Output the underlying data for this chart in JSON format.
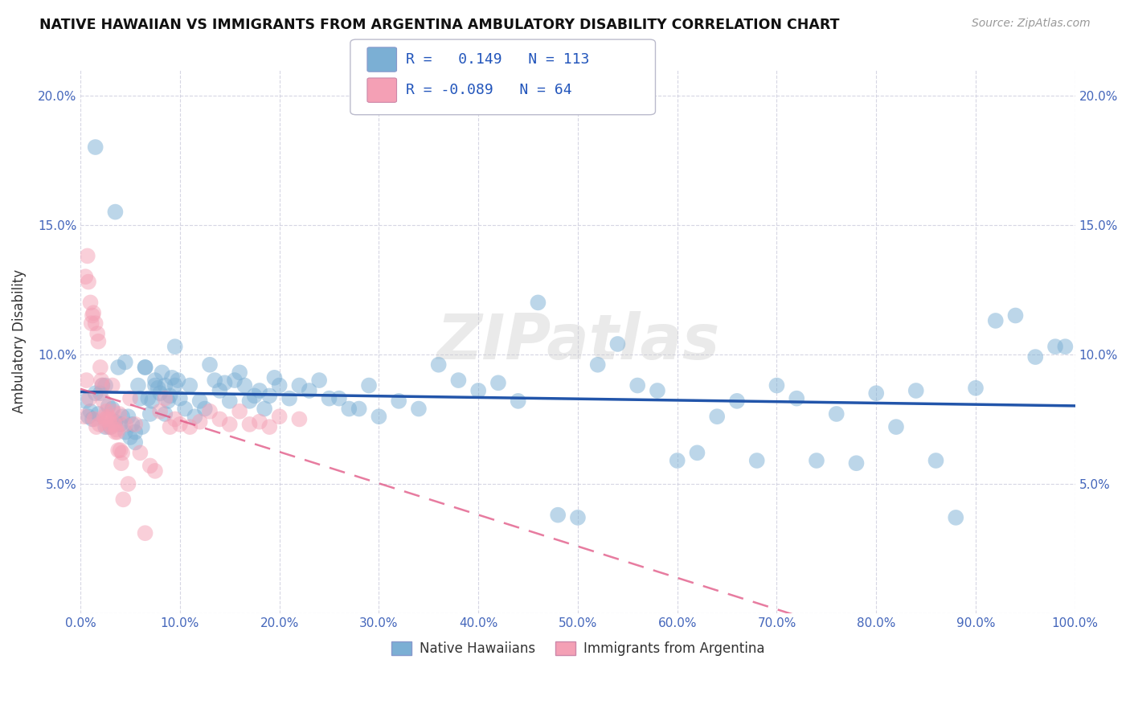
{
  "title": "NATIVE HAWAIIAN VS IMMIGRANTS FROM ARGENTINA AMBULATORY DISABILITY CORRELATION CHART",
  "source": "Source: ZipAtlas.com",
  "ylabel": "Ambulatory Disability",
  "xlim": [
    0.0,
    1.0
  ],
  "ylim": [
    0.0,
    0.21
  ],
  "xticks": [
    0.0,
    0.1,
    0.2,
    0.3,
    0.4,
    0.5,
    0.6,
    0.7,
    0.8,
    0.9,
    1.0
  ],
  "xticklabels": [
    "0.0%",
    "10.0%",
    "20.0%",
    "30.0%",
    "40.0%",
    "50.0%",
    "60.0%",
    "70.0%",
    "80.0%",
    "90.0%",
    "100.0%"
  ],
  "yticks": [
    0.0,
    0.05,
    0.1,
    0.15,
    0.2
  ],
  "yticklabels": [
    "",
    "5.0%",
    "10.0%",
    "15.0%",
    "20.0%"
  ],
  "blue_R": 0.149,
  "blue_N": 113,
  "pink_R": -0.089,
  "pink_N": 64,
  "blue_color": "#7BAFD4",
  "pink_color": "#F4A0B5",
  "blue_line_color": "#2255AA",
  "pink_line_color": "#E05080",
  "watermark": "ZIPatlas",
  "legend_label_blue": "Native Hawaiians",
  "legend_label_pink": "Immigrants from Argentina",
  "blue_scatter_x": [
    0.005,
    0.008,
    0.01,
    0.012,
    0.015,
    0.018,
    0.02,
    0.022,
    0.025,
    0.028,
    0.03,
    0.032,
    0.035,
    0.038,
    0.04,
    0.042,
    0.045,
    0.048,
    0.05,
    0.052,
    0.055,
    0.058,
    0.06,
    0.062,
    0.065,
    0.068,
    0.07,
    0.072,
    0.075,
    0.078,
    0.08,
    0.082,
    0.085,
    0.088,
    0.09,
    0.092,
    0.095,
    0.098,
    0.1,
    0.105,
    0.11,
    0.115,
    0.12,
    0.125,
    0.13,
    0.135,
    0.14,
    0.145,
    0.15,
    0.155,
    0.16,
    0.165,
    0.17,
    0.175,
    0.18,
    0.185,
    0.19,
    0.195,
    0.2,
    0.21,
    0.22,
    0.23,
    0.24,
    0.25,
    0.26,
    0.27,
    0.28,
    0.29,
    0.3,
    0.32,
    0.34,
    0.36,
    0.38,
    0.4,
    0.42,
    0.44,
    0.46,
    0.48,
    0.5,
    0.52,
    0.54,
    0.56,
    0.58,
    0.6,
    0.62,
    0.64,
    0.66,
    0.68,
    0.7,
    0.72,
    0.74,
    0.76,
    0.78,
    0.8,
    0.82,
    0.84,
    0.86,
    0.88,
    0.9,
    0.92,
    0.94,
    0.96,
    0.98,
    0.99,
    0.015,
    0.025,
    0.035,
    0.045,
    0.055,
    0.065,
    0.075,
    0.085,
    0.095
  ],
  "blue_scatter_y": [
    0.082,
    0.076,
    0.078,
    0.075,
    0.085,
    0.077,
    0.085,
    0.088,
    0.088,
    0.08,
    0.072,
    0.079,
    0.074,
    0.095,
    0.073,
    0.076,
    0.07,
    0.076,
    0.068,
    0.073,
    0.07,
    0.088,
    0.083,
    0.072,
    0.095,
    0.083,
    0.077,
    0.082,
    0.09,
    0.087,
    0.085,
    0.093,
    0.088,
    0.082,
    0.084,
    0.091,
    0.088,
    0.09,
    0.083,
    0.079,
    0.088,
    0.076,
    0.082,
    0.079,
    0.096,
    0.09,
    0.086,
    0.089,
    0.082,
    0.09,
    0.093,
    0.088,
    0.082,
    0.084,
    0.086,
    0.079,
    0.084,
    0.091,
    0.088,
    0.083,
    0.088,
    0.086,
    0.09,
    0.083,
    0.083,
    0.079,
    0.079,
    0.088,
    0.076,
    0.082,
    0.079,
    0.096,
    0.09,
    0.086,
    0.089,
    0.082,
    0.12,
    0.038,
    0.037,
    0.096,
    0.104,
    0.088,
    0.086,
    0.059,
    0.062,
    0.076,
    0.082,
    0.059,
    0.088,
    0.083,
    0.059,
    0.077,
    0.058,
    0.085,
    0.072,
    0.086,
    0.059,
    0.037,
    0.087,
    0.113,
    0.115,
    0.099,
    0.103,
    0.103,
    0.18,
    0.072,
    0.155,
    0.097,
    0.066,
    0.095,
    0.088,
    0.077,
    0.103
  ],
  "pink_scatter_x": [
    0.004,
    0.005,
    0.006,
    0.007,
    0.008,
    0.009,
    0.01,
    0.011,
    0.012,
    0.013,
    0.014,
    0.015,
    0.016,
    0.017,
    0.018,
    0.019,
    0.02,
    0.021,
    0.022,
    0.023,
    0.024,
    0.025,
    0.026,
    0.027,
    0.028,
    0.029,
    0.03,
    0.031,
    0.032,
    0.033,
    0.034,
    0.035,
    0.036,
    0.037,
    0.038,
    0.039,
    0.04,
    0.041,
    0.042,
    0.043,
    0.045,
    0.048,
    0.05,
    0.055,
    0.06,
    0.065,
    0.07,
    0.075,
    0.08,
    0.085,
    0.09,
    0.095,
    0.1,
    0.11,
    0.12,
    0.13,
    0.14,
    0.15,
    0.16,
    0.17,
    0.18,
    0.19,
    0.2,
    0.22
  ],
  "pink_scatter_y": [
    0.076,
    0.13,
    0.09,
    0.138,
    0.128,
    0.083,
    0.12,
    0.112,
    0.115,
    0.116,
    0.075,
    0.112,
    0.072,
    0.108,
    0.105,
    0.073,
    0.095,
    0.09,
    0.088,
    0.082,
    0.076,
    0.075,
    0.078,
    0.072,
    0.076,
    0.075,
    0.073,
    0.072,
    0.088,
    0.078,
    0.073,
    0.07,
    0.071,
    0.07,
    0.063,
    0.077,
    0.063,
    0.058,
    0.062,
    0.044,
    0.073,
    0.05,
    0.083,
    0.073,
    0.062,
    0.031,
    0.057,
    0.055,
    0.078,
    0.083,
    0.072,
    0.075,
    0.073,
    0.072,
    0.074,
    0.078,
    0.075,
    0.073,
    0.078,
    0.073,
    0.074,
    0.072,
    0.076,
    0.075
  ]
}
